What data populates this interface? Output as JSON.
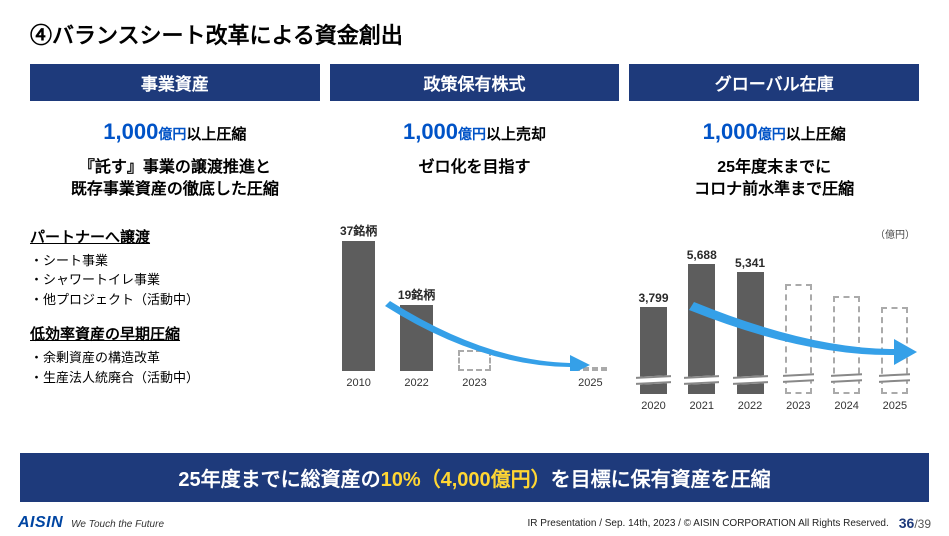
{
  "title": "④バランスシート改革による資金創出",
  "cols": [
    {
      "header": "事業資産",
      "headline_big": "1,000",
      "headline_small": "億円",
      "headline_tail": "以上圧縮",
      "subtext": "『託す』事業の譲渡推進と\n既存事業資産の徹底した圧縮",
      "section1_title": "パートナーへ譲渡",
      "section1_items": [
        "・シート事業",
        "・シャワートイレ事業",
        "・他プロジェクト（活動中）"
      ],
      "section2_title": "低効率資産の早期圧縮",
      "section2_items": [
        "・余剰資産の構造改革",
        "・生産法人統廃合（活動中）"
      ]
    },
    {
      "header": "政策保有株式",
      "headline_big": "1,000",
      "headline_small": "億円",
      "headline_tail": "以上売却",
      "subtext": "ゼロ化を目指す",
      "chart": {
        "type": "bar",
        "unit": "",
        "categories": [
          "2010",
          "2022",
          "2023",
          "",
          "2025"
        ],
        "values": [
          37,
          19,
          6,
          null,
          1
        ],
        "value_labels": [
          "37銘柄",
          "19銘柄",
          "",
          "",
          ""
        ],
        "solid": [
          true,
          true,
          false,
          false,
          false
        ],
        "wave": [
          false,
          false,
          false,
          false,
          false
        ],
        "max": 37,
        "bar_color_solid": "#5d5d5d",
        "bar_color_outline": "#aaaaaa",
        "arrow_color": "#35a0e8"
      }
    },
    {
      "header": "グローバル在庫",
      "headline_big": "1,000",
      "headline_small": "億円",
      "headline_tail": "以上圧縮",
      "subtext": "25年度末までに\nコロナ前水準まで圧縮",
      "chart": {
        "type": "bar",
        "unit": "（億円）",
        "categories": [
          "2020",
          "2021",
          "2022",
          "2023",
          "2024",
          "2025"
        ],
        "values": [
          3799,
          5688,
          5341,
          4800,
          4300,
          3800
        ],
        "value_labels": [
          "3,799",
          "5,688",
          "5,341",
          "",
          "",
          ""
        ],
        "solid": [
          true,
          true,
          true,
          false,
          false,
          false
        ],
        "wave": [
          true,
          true,
          true,
          true,
          true,
          true
        ],
        "max": 5688,
        "bar_color_solid": "#5d5d5d",
        "bar_color_outline": "#aaaaaa",
        "arrow_color": "#35a0e8"
      }
    }
  ],
  "banner": {
    "pre": "25年度までに総資産の",
    "em": "10%（4,000億円）",
    "post": "を目標に保有資産を圧縮"
  },
  "footer": {
    "brand": "AISIN",
    "tagline": "We Touch the Future",
    "note": "IR Presentation / Sep. 14th, 2023 / © AISIN CORPORATION All Rights Reserved.",
    "page_current": "36",
    "page_total": "/39"
  },
  "colors": {
    "header_bg": "#1e3a7b",
    "accent_blue": "#0053c7",
    "arrow": "#35a0e8",
    "banner_em": "#ffd633"
  }
}
